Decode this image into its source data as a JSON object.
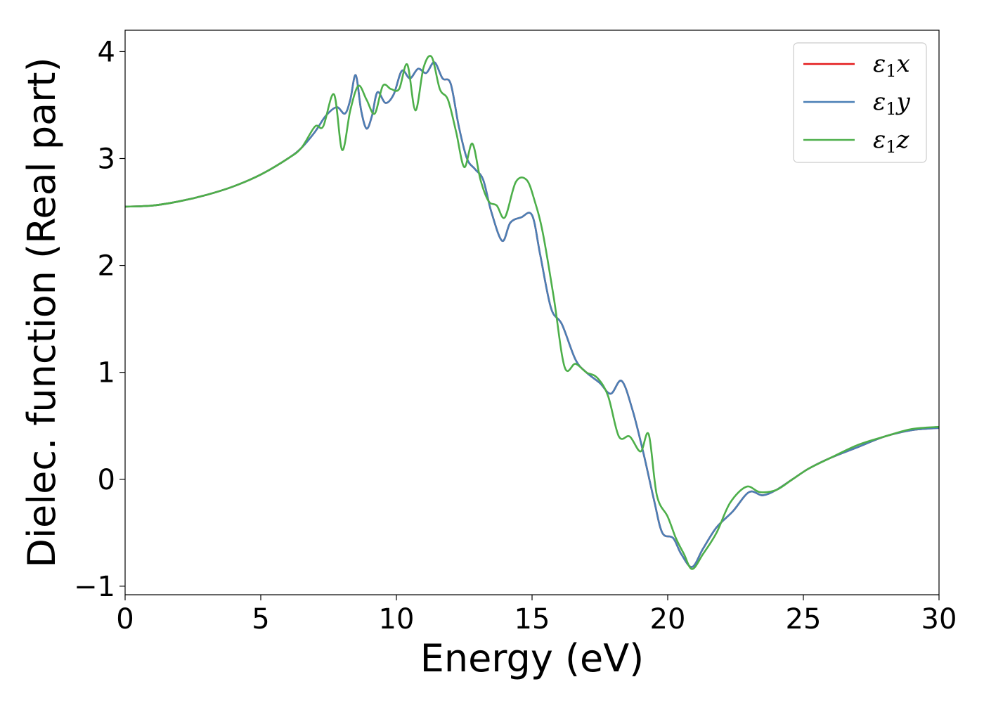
{
  "chart_data": {
    "type": "line",
    "title": "",
    "xlabel": "Energy (eV)",
    "ylabel": "Dielec. function (Real part)",
    "xlim": [
      0,
      30
    ],
    "ylim": [
      -1.08,
      4.2
    ],
    "xticks": [
      0,
      5,
      10,
      15,
      20,
      25,
      30
    ],
    "xtick_labels": [
      "0",
      "5",
      "10",
      "15",
      "20",
      "25",
      "30"
    ],
    "yticks": [
      -1,
      0,
      1,
      2,
      3,
      4
    ],
    "ytick_labels": [
      "−1",
      "0",
      "1",
      "2",
      "3",
      "4"
    ],
    "grid": false,
    "legend_position": "top-right",
    "series": [
      {
        "name": "ε₁x",
        "legend_main": "ε",
        "legend_sub": "1",
        "legend_suffix": "x",
        "color": "#e41a1c",
        "x": [
          0,
          1,
          2,
          3,
          4,
          5,
          6,
          6.5,
          7,
          7.4,
          7.8,
          8.1,
          8.3,
          8.5,
          8.7,
          8.9,
          9.1,
          9.3,
          9.6,
          9.9,
          10.2,
          10.5,
          10.8,
          11.1,
          11.4,
          11.7,
          12.0,
          12.3,
          12.6,
          12.9,
          13.2,
          13.5,
          13.9,
          14.2,
          14.6,
          15.0,
          15.3,
          15.7,
          16.1,
          16.6,
          17.0,
          17.5,
          17.9,
          18.3,
          18.7,
          19.1,
          19.5,
          19.8,
          20.2,
          20.5,
          20.9,
          21.3,
          21.8,
          22.4,
          23.0,
          23.5,
          24.0,
          24.6,
          25.2,
          26.0,
          27.0,
          28.0,
          29.0,
          30.0
        ],
        "y": [
          2.55,
          2.56,
          2.6,
          2.66,
          2.74,
          2.85,
          3.0,
          3.1,
          3.25,
          3.4,
          3.48,
          3.42,
          3.55,
          3.78,
          3.45,
          3.28,
          3.4,
          3.62,
          3.52,
          3.6,
          3.82,
          3.75,
          3.84,
          3.8,
          3.9,
          3.75,
          3.7,
          3.3,
          3.0,
          2.9,
          2.8,
          2.5,
          2.23,
          2.4,
          2.45,
          2.47,
          2.1,
          1.6,
          1.45,
          1.12,
          1.0,
          0.9,
          0.8,
          0.92,
          0.65,
          0.25,
          -0.2,
          -0.5,
          -0.55,
          -0.7,
          -0.82,
          -0.65,
          -0.45,
          -0.3,
          -0.12,
          -0.15,
          -0.1,
          0.0,
          0.1,
          0.2,
          0.3,
          0.4,
          0.46,
          0.48
        ]
      },
      {
        "name": "ε₁y",
        "legend_main": "ε",
        "legend_sub": "1",
        "legend_suffix": "y",
        "color": "#4a7fb5",
        "x": [
          0,
          1,
          2,
          3,
          4,
          5,
          6,
          6.5,
          7,
          7.4,
          7.8,
          8.1,
          8.3,
          8.5,
          8.7,
          8.9,
          9.1,
          9.3,
          9.6,
          9.9,
          10.2,
          10.5,
          10.8,
          11.1,
          11.4,
          11.7,
          12.0,
          12.3,
          12.6,
          12.9,
          13.2,
          13.5,
          13.9,
          14.2,
          14.6,
          15.0,
          15.3,
          15.7,
          16.1,
          16.6,
          17.0,
          17.5,
          17.9,
          18.3,
          18.7,
          19.1,
          19.5,
          19.8,
          20.2,
          20.5,
          20.9,
          21.3,
          21.8,
          22.4,
          23.0,
          23.5,
          24.0,
          24.6,
          25.2,
          26.0,
          27.0,
          28.0,
          29.0,
          30.0
        ],
        "y": [
          2.55,
          2.56,
          2.6,
          2.66,
          2.74,
          2.85,
          3.0,
          3.1,
          3.25,
          3.4,
          3.48,
          3.42,
          3.55,
          3.78,
          3.45,
          3.28,
          3.4,
          3.62,
          3.52,
          3.6,
          3.82,
          3.75,
          3.84,
          3.8,
          3.9,
          3.75,
          3.7,
          3.3,
          3.0,
          2.9,
          2.8,
          2.5,
          2.23,
          2.4,
          2.45,
          2.47,
          2.1,
          1.6,
          1.45,
          1.12,
          1.0,
          0.9,
          0.8,
          0.92,
          0.65,
          0.25,
          -0.2,
          -0.5,
          -0.55,
          -0.7,
          -0.82,
          -0.65,
          -0.45,
          -0.3,
          -0.12,
          -0.15,
          -0.1,
          0.0,
          0.1,
          0.2,
          0.3,
          0.4,
          0.46,
          0.48
        ]
      },
      {
        "name": "ε₁z",
        "legend_main": "ε",
        "legend_sub": "1",
        "legend_suffix": "z",
        "color": "#4daf4a",
        "x": [
          0,
          1,
          2,
          3,
          4,
          5,
          6,
          6.5,
          7,
          7.3,
          7.7,
          8.0,
          8.3,
          8.6,
          8.9,
          9.2,
          9.5,
          9.8,
          10.1,
          10.4,
          10.7,
          11.0,
          11.3,
          11.6,
          11.9,
          12.2,
          12.5,
          12.8,
          13.1,
          13.4,
          13.7,
          14.0,
          14.4,
          14.8,
          15.1,
          15.4,
          15.8,
          16.2,
          16.6,
          17.0,
          17.4,
          17.8,
          18.2,
          18.6,
          19.0,
          19.3,
          19.6,
          20.0,
          20.3,
          20.6,
          20.9,
          21.3,
          21.8,
          22.3,
          22.9,
          23.4,
          24.0,
          24.6,
          25.2,
          26.0,
          27.0,
          28.0,
          29.0,
          30.0
        ],
        "y": [
          2.55,
          2.56,
          2.6,
          2.66,
          2.74,
          2.85,
          3.0,
          3.1,
          3.3,
          3.3,
          3.6,
          3.08,
          3.45,
          3.68,
          3.55,
          3.42,
          3.68,
          3.65,
          3.65,
          3.88,
          3.45,
          3.85,
          3.95,
          3.65,
          3.55,
          3.25,
          2.92,
          3.14,
          2.8,
          2.6,
          2.56,
          2.45,
          2.78,
          2.8,
          2.6,
          2.3,
          1.7,
          1.05,
          1.08,
          1.0,
          0.95,
          0.78,
          0.4,
          0.4,
          0.26,
          0.42,
          -0.15,
          -0.35,
          -0.55,
          -0.7,
          -0.84,
          -0.7,
          -0.5,
          -0.22,
          -0.07,
          -0.12,
          -0.1,
          0.0,
          0.1,
          0.2,
          0.32,
          0.4,
          0.47,
          0.49
        ]
      }
    ]
  }
}
